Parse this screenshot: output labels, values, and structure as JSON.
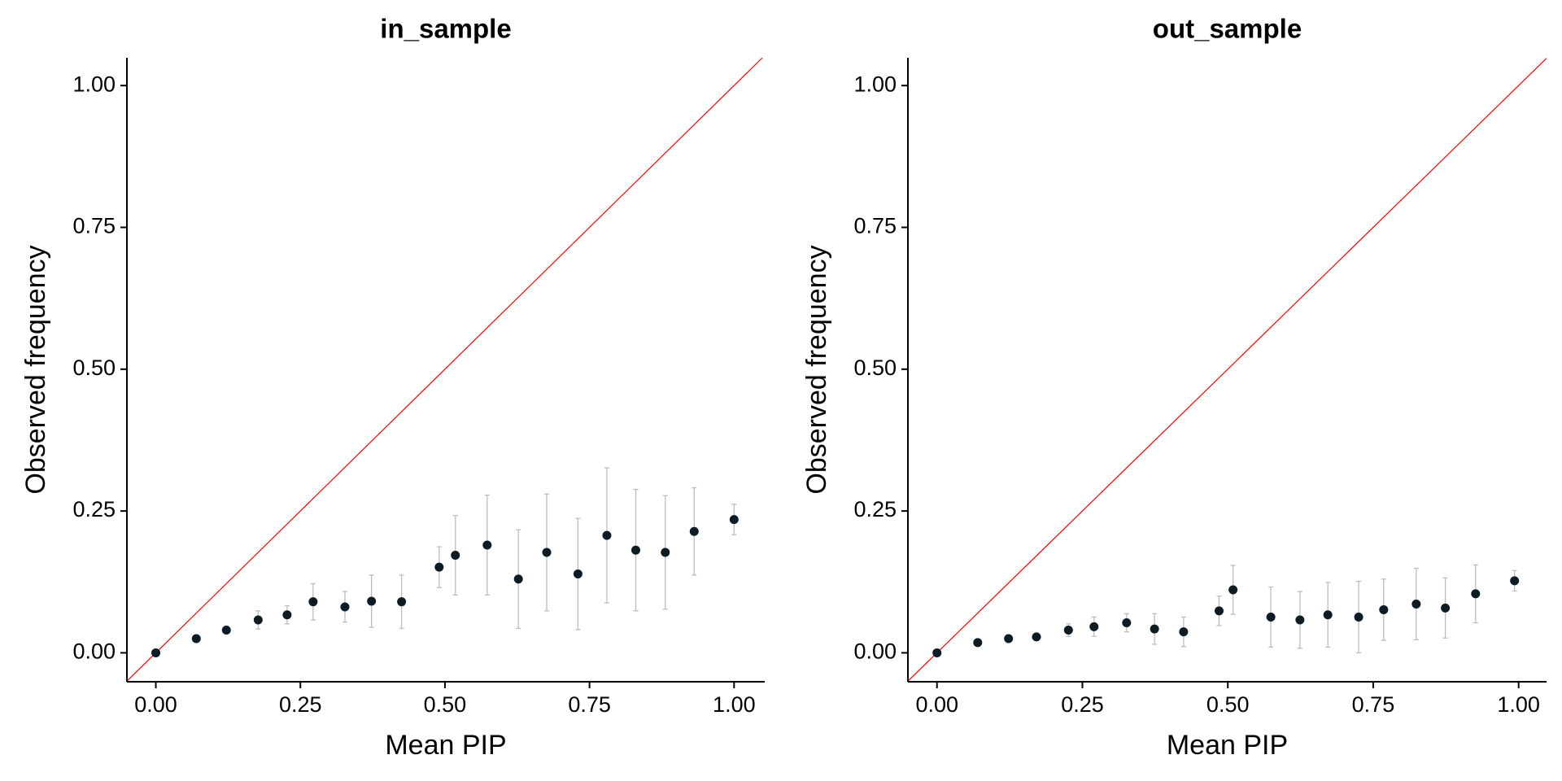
{
  "chart_data": [
    {
      "type": "scatter",
      "title": "in_sample",
      "x_label": "Mean PIP",
      "y_label": "Observed frequency",
      "xlim": [
        -0.05,
        1.053
      ],
      "ylim": [
        -0.051,
        1.049
      ],
      "xticks": [
        {
          "value": 0,
          "label": "0.00"
        },
        {
          "value": 0.25,
          "label": "0.25"
        },
        {
          "value": 0.5,
          "label": "0.50"
        },
        {
          "value": 0.75,
          "label": "0.75"
        },
        {
          "value": 1,
          "label": "1.00"
        }
      ],
      "yticks": [
        {
          "value": 0,
          "label": "0.00"
        },
        {
          "value": 0.25,
          "label": "0.25"
        },
        {
          "value": 0.5,
          "label": "0.50"
        },
        {
          "value": 0.75,
          "label": "0.75"
        },
        {
          "value": 1,
          "label": "1.00"
        }
      ],
      "reference_line_color": "#ff0000",
      "error_color": "#bdbdbd",
      "series": [
        {
          "color": "#0d1b24",
          "x": [
            0,
            0.07,
            0.122,
            0.177,
            0.227,
            0.272,
            0.327,
            0.373,
            0.425,
            0.49,
            0.518,
            0.573,
            0.627,
            0.676,
            0.73,
            0.78,
            0.83,
            0.881,
            0.931,
            1.0
          ],
          "values": [
            0,
            0.025,
            0.04,
            0.058,
            0.067,
            0.09,
            0.081,
            0.091,
            0.09,
            0.151,
            0.172,
            0.19,
            0.13,
            0.177,
            0.139,
            0.207,
            0.181,
            0.177,
            0.214,
            0.235
          ],
          "errors": [
            0,
            0,
            0,
            0.016,
            0.016,
            0.032,
            0.027,
            0.046,
            0.047,
            0.036,
            0.07,
            0.088,
            0.087,
            0.103,
            0.098,
            0.119,
            0.107,
            0.1,
            0.077,
            0.027
          ]
        }
      ]
    },
    {
      "type": "scatter",
      "title": "out_sample",
      "x_label": "Mean PIP",
      "y_label": "Observed frequency",
      "xlim": [
        -0.05,
        1.048
      ],
      "ylim": [
        -0.051,
        1.049
      ],
      "xticks": [
        {
          "value": 0,
          "label": "0.00"
        },
        {
          "value": 0.25,
          "label": "0.25"
        },
        {
          "value": 0.5,
          "label": "0.50"
        },
        {
          "value": 0.75,
          "label": "0.75"
        },
        {
          "value": 1,
          "label": "1.00"
        }
      ],
      "yticks": [
        {
          "value": 0,
          "label": "0.00"
        },
        {
          "value": 0.25,
          "label": "0.25"
        },
        {
          "value": 0.5,
          "label": "0.50"
        },
        {
          "value": 0.75,
          "label": "0.75"
        },
        {
          "value": 1,
          "label": "1.00"
        }
      ],
      "reference_line_color": "#ff0000",
      "error_color": "#bdbdbd",
      "series": [
        {
          "color": "#0d1b24",
          "x": [
            0,
            0.07,
            0.123,
            0.171,
            0.226,
            0.27,
            0.326,
            0.374,
            0.424,
            0.485,
            0.509,
            0.574,
            0.624,
            0.672,
            0.725,
            0.768,
            0.824,
            0.874,
            0.926,
            0.993
          ],
          "values": [
            0,
            0.018,
            0.025,
            0.028,
            0.04,
            0.046,
            0.053,
            0.042,
            0.037,
            0.074,
            0.111,
            0.063,
            0.058,
            0.067,
            0.063,
            0.076,
            0.086,
            0.079,
            0.104,
            0.127
          ],
          "errors": [
            0,
            0,
            0,
            0,
            0.011,
            0.017,
            0.016,
            0.027,
            0.026,
            0.026,
            0.043,
            0.053,
            0.05,
            0.057,
            0.063,
            0.054,
            0.063,
            0.053,
            0.051,
            0.018
          ]
        }
      ]
    }
  ]
}
